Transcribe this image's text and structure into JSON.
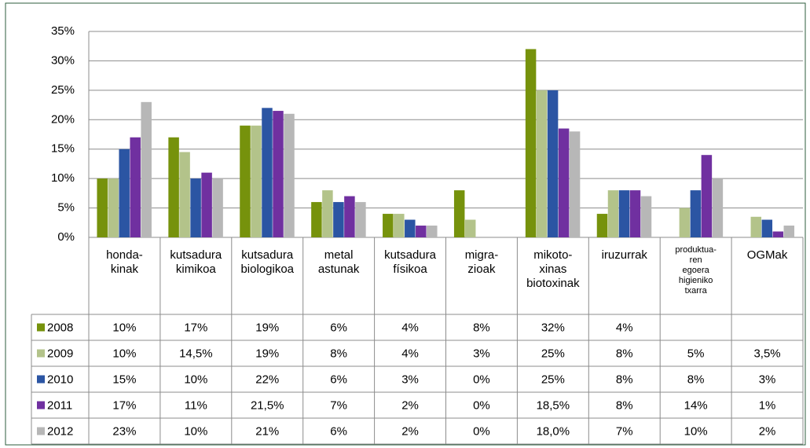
{
  "chart_data": {
    "type": "bar",
    "categories": [
      "honda-\nkinak",
      "kutsadura\nkimikoa",
      "kutsadura\nbiologikoa",
      "metal\nastunak",
      "kutsadura\nfísikoa",
      "migra-\nzioak",
      "mikoto-\nxinas\nbiotoxinak",
      "iruzurrak",
      "produktua-\nren\negoera\nhigieniko\ntxarra",
      "OGMak"
    ],
    "series": [
      {
        "name": "2008",
        "color": "#76920c",
        "values": [
          10,
          17,
          19,
          6,
          4,
          8,
          32,
          4,
          null,
          null
        ],
        "value_labels": [
          "10%",
          "17%",
          "19%",
          "6%",
          "4%",
          "8%",
          "32%",
          "4%",
          null,
          null
        ]
      },
      {
        "name": "2009",
        "color": "#b3c38a",
        "values": [
          10,
          14.5,
          19,
          8,
          4,
          3,
          25,
          8,
          5,
          3.5
        ],
        "value_labels": [
          "10%",
          "14,5%",
          "19%",
          "8%",
          "4%",
          "3%",
          "25%",
          "8%",
          "5%",
          "3,5%"
        ]
      },
      {
        "name": "2010",
        "color": "#2b55a3",
        "values": [
          15,
          10,
          22,
          6,
          3,
          0,
          25,
          8,
          8,
          3
        ],
        "value_labels": [
          "15%",
          "10%",
          "22%",
          "6%",
          "3%",
          "0%",
          "25%",
          "8%",
          "8%",
          "3%"
        ]
      },
      {
        "name": "2011",
        "color": "#7030a0",
        "values": [
          17,
          11,
          21.5,
          7,
          2,
          0,
          18.5,
          8,
          14,
          1
        ],
        "value_labels": [
          "17%",
          "11%",
          "21,5%",
          "7%",
          "2%",
          "0%",
          "18,5%",
          "8%",
          "14%",
          "1%"
        ]
      },
      {
        "name": "2012",
        "color": "#b7b7b7",
        "values": [
          23,
          10,
          21,
          6,
          2,
          0,
          18,
          7,
          10,
          2
        ],
        "value_labels": [
          "23%",
          "10%",
          "21%",
          "6%",
          "2%",
          "0%",
          "18,0%",
          "7%",
          "10%",
          "2%"
        ]
      }
    ],
    "ylim": [
      0,
      35
    ],
    "yticks": [
      {
        "value": 0,
        "label": "0%"
      },
      {
        "value": 5,
        "label": "5%"
      },
      {
        "value": 10,
        "label": "10%"
      },
      {
        "value": 15,
        "label": "15%"
      },
      {
        "value": 20,
        "label": "20%"
      },
      {
        "value": 25,
        "label": "25%"
      },
      {
        "value": 30,
        "label": "30%"
      },
      {
        "value": 35,
        "label": "35%"
      }
    ],
    "grid": true
  }
}
